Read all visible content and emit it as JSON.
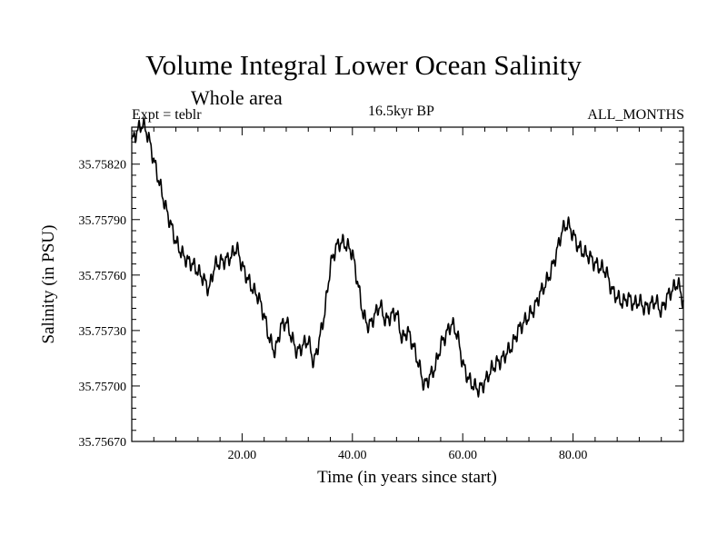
{
  "chart_data": {
    "type": "line",
    "title": "Volume Integral Lower Ocean Salinity",
    "subtitle": "Whole area",
    "expt_label": "Expt = teblr",
    "period_label": "16.5kyr BP",
    "months_label": "ALL_MONTHS",
    "xlabel": "Time (in years since start)",
    "ylabel": "Salinity (in PSU)",
    "xlim": [
      0,
      100
    ],
    "ylim": [
      35.7567,
      35.7584
    ],
    "x_ticks": [
      20,
      40,
      60,
      80
    ],
    "x_tick_labels": [
      "20.00",
      "40.00",
      "60.00",
      "80.00"
    ],
    "y_ticks": [
      35.7567,
      35.757,
      35.7573,
      35.7576,
      35.7579,
      35.7582
    ],
    "y_tick_labels": [
      "35.75670",
      "35.75700",
      "35.75730",
      "35.75760",
      "35.75790",
      "35.75820"
    ],
    "series": [
      {
        "name": "salinity",
        "x": [
          0,
          1,
          2,
          3,
          4,
          5,
          6,
          7,
          8,
          9,
          10,
          11,
          12,
          13,
          14,
          15,
          16,
          17,
          18,
          19,
          20,
          21,
          22,
          23,
          24,
          25,
          26,
          27,
          28,
          29,
          30,
          31,
          32,
          33,
          34,
          35,
          36,
          37,
          38,
          39,
          40,
          41,
          42,
          43,
          44,
          45,
          46,
          47,
          48,
          49,
          50,
          51,
          52,
          53,
          54,
          55,
          56,
          57,
          58,
          59,
          60,
          61,
          62,
          63,
          64,
          65,
          66,
          67,
          68,
          69,
          70,
          71,
          72,
          73,
          74,
          75,
          76,
          77,
          78,
          79,
          80,
          81,
          82,
          83,
          84,
          85,
          86,
          87,
          88,
          89,
          90,
          91,
          92,
          93,
          94,
          95,
          96,
          97,
          98,
          99,
          100
        ],
        "values": [
          35.75832,
          35.75838,
          35.75842,
          35.75835,
          35.75822,
          35.7581,
          35.75798,
          35.75788,
          35.75778,
          35.75772,
          35.75768,
          35.75766,
          35.75762,
          35.75758,
          35.75752,
          35.75765,
          35.75767,
          35.75768,
          35.7577,
          35.75775,
          35.75765,
          35.75758,
          35.75752,
          35.75748,
          35.75738,
          35.75725,
          35.75718,
          35.75732,
          35.75735,
          35.75726,
          35.75718,
          35.75722,
          35.75725,
          35.75712,
          35.75725,
          35.7574,
          35.75765,
          35.75775,
          35.75778,
          35.75776,
          35.75772,
          35.75755,
          35.75738,
          35.75732,
          35.75738,
          35.75744,
          35.75735,
          35.75738,
          35.7574,
          35.75725,
          35.7573,
          35.75722,
          35.75712,
          35.757,
          35.75705,
          35.7571,
          35.75722,
          35.75728,
          35.75734,
          35.75728,
          35.75712,
          35.75704,
          35.757,
          35.75698,
          35.75702,
          35.75708,
          35.75712,
          35.75714,
          35.75718,
          35.75722,
          35.7573,
          35.75734,
          35.75738,
          35.75742,
          35.7575,
          35.75755,
          35.75762,
          35.75772,
          35.75784,
          35.75788,
          35.75782,
          35.75775,
          35.75772,
          35.7577,
          35.75766,
          35.75764,
          35.75762,
          35.75752,
          35.75748,
          35.75745,
          35.75748,
          35.75744,
          35.75746,
          35.75742,
          35.75744,
          35.75746,
          35.7574,
          35.75748,
          35.75752,
          35.75756,
          35.75745
        ]
      }
    ]
  }
}
